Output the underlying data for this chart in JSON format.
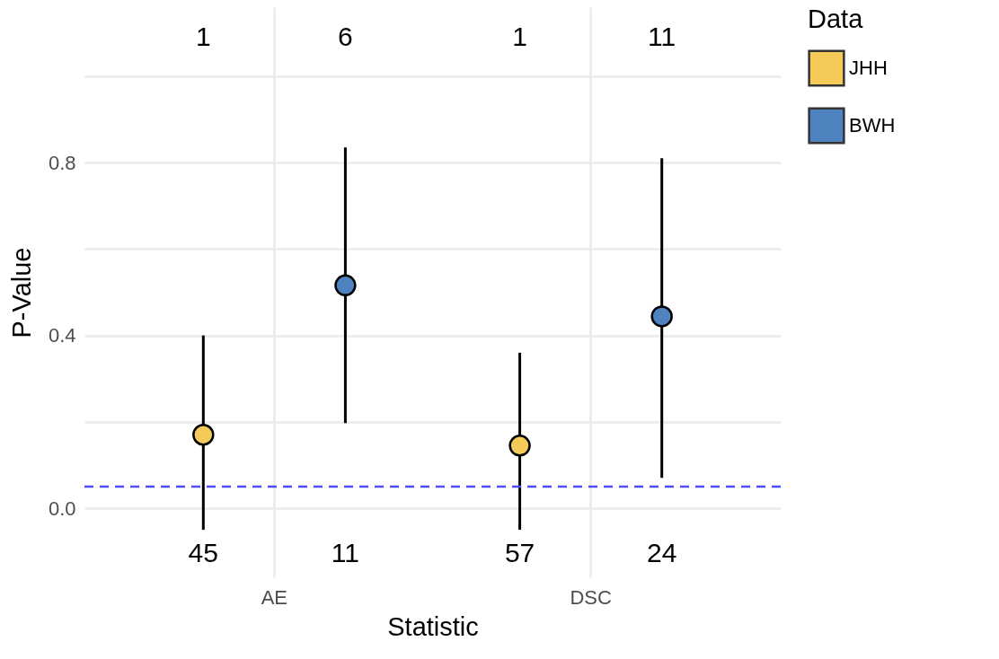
{
  "chart_data": {
    "type": "scatter",
    "xlabel": "Statistic",
    "ylabel": "P-Value",
    "legend_title": "Data",
    "categories": [
      "AE",
      "DSC"
    ],
    "series": [
      {
        "name": "JHH",
        "color": "#f4cb59",
        "values": [
          0.17,
          0.145
        ],
        "errors": [
          [
            -0.05,
            0.4
          ],
          [
            -0.05,
            0.36
          ]
        ]
      },
      {
        "name": "BWH",
        "color": "#4f83bf",
        "values": [
          0.516,
          0.444
        ],
        "errors": [
          [
            0.197,
            0.835
          ],
          [
            0.07,
            0.81
          ]
        ]
      }
    ],
    "ylim": [
      -0.16,
      1.16
    ],
    "yticks": [
      {
        "value": 0,
        "label": "0.0"
      },
      {
        "value": 0.2,
        "label": null
      },
      {
        "value": 0.4,
        "label": "0.4"
      },
      {
        "value": 0.6,
        "label": null
      },
      {
        "value": 0.8,
        "label": "0.8"
      },
      {
        "value": 1.0,
        "label": null
      }
    ],
    "ref_lines": [
      {
        "axis": "y",
        "value": 0.05,
        "color": "#4d4dff",
        "line_style": "dashed"
      }
    ],
    "annotations": [
      "1",
      "6",
      "1",
      "11",
      "45",
      "11",
      "57",
      "24"
    ],
    "grid": true,
    "legend": "right",
    "marker": "circle"
  }
}
